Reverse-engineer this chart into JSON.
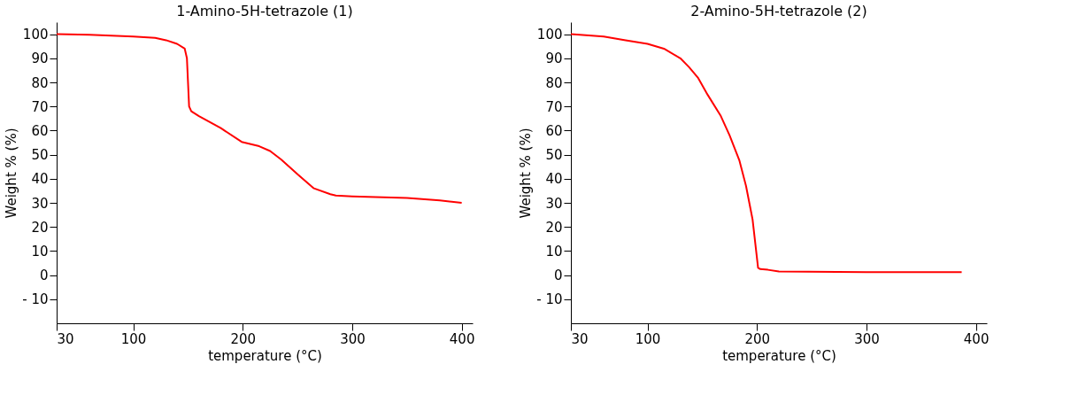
{
  "chart_data": [
    {
      "type": "line",
      "title": "1-Amino-5H-tetrazole (1)",
      "xlabel": "temperature (°C)",
      "ylabel": "Weight % (%)",
      "series": [
        {
          "color": "#ff0000",
          "x": [
            30,
            60,
            100,
            120,
            130,
            140,
            147,
            149,
            150,
            151,
            153,
            160,
            180,
            199,
            215,
            225,
            235,
            251,
            265,
            280,
            285,
            300,
            350,
            380,
            400
          ],
          "values": [
            100,
            99.8,
            99,
            98.5,
            97.5,
            96,
            94,
            90,
            80,
            70,
            68,
            66,
            61,
            55.3,
            53.5,
            51.5,
            48,
            41.5,
            36,
            33.6,
            33,
            32.7,
            32,
            31,
            30
          ]
        }
      ],
      "xlim": [
        30,
        410
      ],
      "xticks": [
        30,
        100,
        200,
        300,
        400
      ],
      "ylim": [
        -20,
        105
      ],
      "yticks": [
        {
          "value": -10,
          "label": "- 10"
        },
        0,
        10,
        20,
        30,
        40,
        50,
        60,
        70,
        80,
        90,
        100
      ],
      "grid": false,
      "marker": "none",
      "line_style": "solid"
    },
    {
      "type": "line",
      "title": "2-Amino-5H-tetrazole (2)",
      "xlabel": "temperature (°C)",
      "ylabel": "Weight % (%)",
      "series": [
        {
          "color": "#ff0000",
          "x": [
            30,
            60,
            80,
            100,
            115,
            130,
            138,
            146,
            155,
            167,
            175,
            184,
            190,
            196,
            201,
            203,
            210,
            220,
            300,
            387
          ],
          "values": [
            100,
            99,
            97.5,
            96,
            94,
            90,
            86.3,
            82,
            74.8,
            66,
            58,
            47.5,
            37,
            23,
            3,
            2.5,
            2.2,
            1.5,
            1.2,
            1.2
          ]
        }
      ],
      "xlim": [
        30,
        410
      ],
      "xticks": [
        30,
        100,
        200,
        300,
        400
      ],
      "ylim": [
        -20,
        105
      ],
      "yticks": [
        {
          "value": -10,
          "label": "- 10"
        },
        0,
        10,
        20,
        30,
        40,
        50,
        60,
        70,
        80,
        90,
        100
      ],
      "grid": false,
      "marker": "none",
      "line_style": "solid"
    }
  ]
}
